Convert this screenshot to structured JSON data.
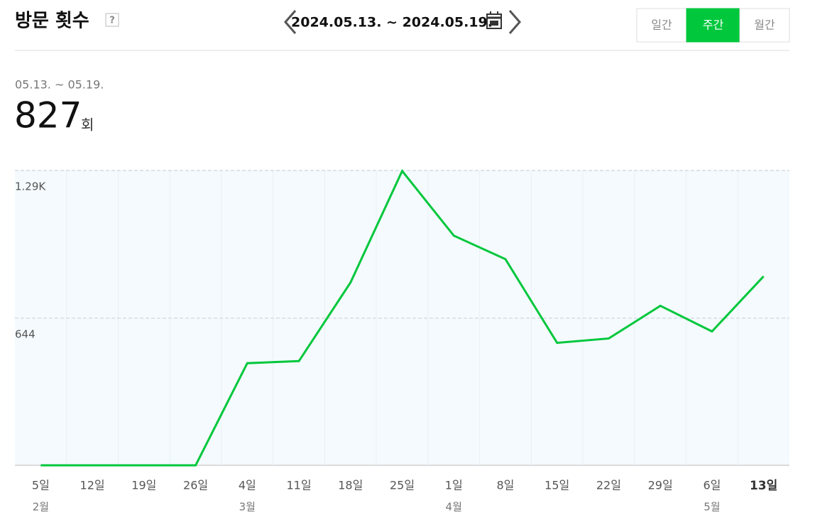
{
  "header": {
    "title": "방문 횟수",
    "help": "?",
    "date_range": "2024.05.13. ~ 2024.05.19.",
    "tabs": [
      "일간",
      "주간",
      "월간"
    ],
    "active_tab": 1
  },
  "summary": {
    "period": "05.13. ~ 05.19.",
    "value": 827,
    "unit": "회"
  },
  "chart_data": {
    "type": "line",
    "categories": [
      "5일",
      "12일",
      "19일",
      "26일",
      "4일",
      "11일",
      "18일",
      "25일",
      "1일",
      "8일",
      "15일",
      "22일",
      "29일",
      "6일",
      "13일"
    ],
    "month_labels": [
      "2월",
      null,
      null,
      null,
      "3월",
      null,
      null,
      null,
      "4월",
      null,
      null,
      null,
      null,
      "5월",
      null
    ],
    "values": [
      0,
      0,
      0,
      0,
      447,
      456,
      800,
      1288,
      1005,
      902,
      536,
      555,
      698,
      586,
      827
    ],
    "color": "#00c73c",
    "ylim": [
      0,
      1290
    ],
    "yticks": [
      644,
      {
        "value": 1290,
        "label": "1.29K"
      }
    ],
    "grid": true
  }
}
